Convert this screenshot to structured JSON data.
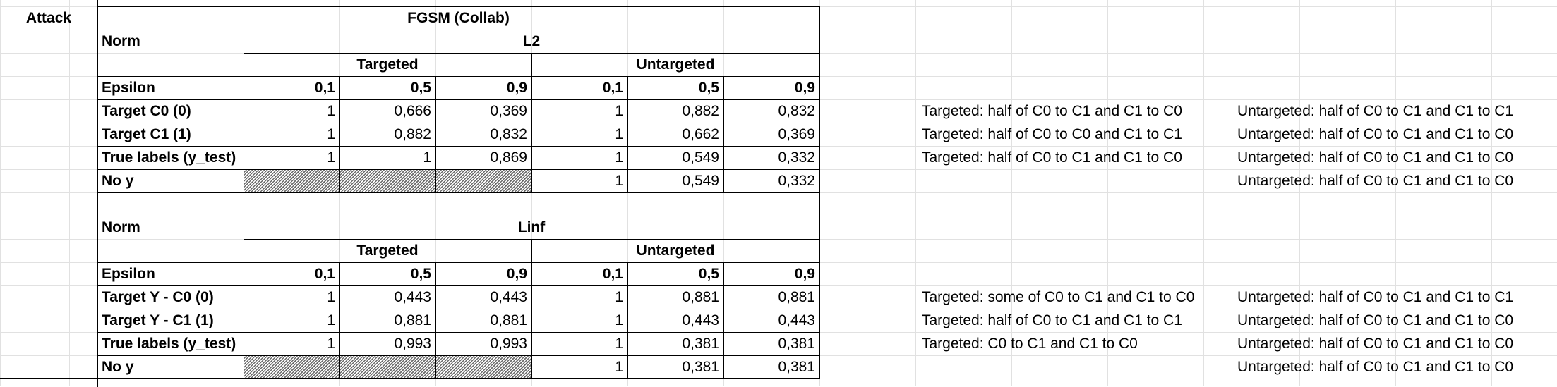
{
  "attack_label": "Attack",
  "title": "FGSM (Collab)",
  "sections": [
    {
      "norm_label": "Norm",
      "norm_value": "L2",
      "targeted_label": "Targeted",
      "untargeted_label": "Untargeted",
      "epsilon_label": "Epsilon",
      "epsilons": [
        "0,1",
        "0,5",
        "0,9",
        "0,1",
        "0,5",
        "0,9"
      ],
      "rows": [
        {
          "label": "Target C0 (0)",
          "values": [
            "1",
            "0,666",
            "0,369",
            "1",
            "0,882",
            "0,832"
          ],
          "note_targeted": "Targeted: half of C0 to C1 and C1 to C0",
          "note_untargeted": "Untargeted:  half of C0 to C1 and C1 to C1"
        },
        {
          "label": "Target C1 (1)",
          "values": [
            "1",
            "0,882",
            "0,832",
            "1",
            "0,662",
            "0,369"
          ],
          "note_targeted": "Targeted: half of C0 to C0 and C1 to C1",
          "note_untargeted": "Untargeted:  half of C0 to C1 and C1 to C0"
        },
        {
          "label": "True labels (y_test)",
          "values": [
            "1",
            "1",
            "0,869",
            "1",
            "0,549",
            "0,332"
          ],
          "note_targeted": "Targeted: half of C0 to C1 and C1 to C0",
          "note_untargeted": "Untargeted:  half of C0 to C1 and C1 to C0"
        },
        {
          "label": "No y",
          "values": [
            "",
            "",
            "",
            "1",
            "0,549",
            "0,332"
          ],
          "note_targeted": "",
          "note_untargeted": "Untargeted:  half of C0 to C1 and C1 to C0"
        }
      ]
    },
    {
      "norm_label": "Norm",
      "norm_value": "Linf",
      "targeted_label": "Targeted",
      "untargeted_label": "Untargeted",
      "epsilon_label": "Epsilon",
      "epsilons": [
        "0,1",
        "0,5",
        "0,9",
        "0,1",
        "0,5",
        "0,9"
      ],
      "rows": [
        {
          "label": "Target Y - C0 (0)",
          "values": [
            "1",
            "0,443",
            "0,443",
            "1",
            "0,881",
            "0,881"
          ],
          "note_targeted": "Targeted: some of C0 to C1 and C1 to C0",
          "note_untargeted": "Untargeted:  half of C0 to C1 and C1 to C1"
        },
        {
          "label": "Target Y -  C1 (1)",
          "values": [
            "1",
            "0,881",
            "0,881",
            "1",
            "0,443",
            "0,443"
          ],
          "note_targeted": "Targeted: half of C0 to C1 and C1 to C1",
          "note_untargeted": "Untargeted:  half of C0 to C1 and C1 to C0"
        },
        {
          "label": "True labels (y_test)",
          "values": [
            "1",
            "0,993",
            "0,993",
            "1",
            "0,381",
            "0,381"
          ],
          "note_targeted": "Targeted: C0 to C1 and C1 to C0",
          "note_untargeted": "Untargeted:  half of C0 to C1 and C1 to C0"
        },
        {
          "label": "No y",
          "values": [
            "",
            "",
            "",
            "1",
            "0,381",
            "0,381"
          ],
          "note_targeted": "",
          "note_untargeted": "Untargeted:  half of C0 to C1 and C1 to C0"
        }
      ]
    }
  ]
}
